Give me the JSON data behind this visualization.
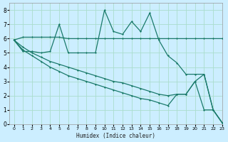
{
  "xlabel": "Humidex (Indice chaleur)",
  "bg_color": "#cceeff",
  "grid_color": "#aaddcc",
  "line_color": "#1a7a6a",
  "xlim": [
    -0.5,
    23
  ],
  "ylim": [
    0,
    8.5
  ],
  "xticks": [
    0,
    1,
    2,
    3,
    4,
    5,
    6,
    7,
    8,
    9,
    10,
    11,
    12,
    13,
    14,
    15,
    16,
    17,
    18,
    19,
    20,
    21,
    22,
    23
  ],
  "yticks": [
    0,
    1,
    2,
    3,
    4,
    5,
    6,
    7,
    8
  ],
  "line1_x": [
    0,
    1,
    2,
    3,
    4,
    5,
    6,
    7,
    8,
    9,
    10,
    11,
    12,
    13,
    14,
    15,
    16,
    17,
    18,
    19,
    20,
    21,
    22,
    23
  ],
  "line1_y": [
    5.9,
    6.1,
    6.1,
    6.1,
    6.1,
    6.1,
    6.0,
    6.0,
    6.0,
    6.0,
    6.0,
    6.0,
    6.0,
    6.0,
    6.0,
    6.0,
    6.0,
    6.0,
    6.0,
    6.0,
    6.0,
    6.0,
    6.0,
    6.0
  ],
  "line2_x": [
    0,
    1,
    2,
    3,
    4,
    5,
    6,
    7,
    8,
    9,
    10,
    11,
    12,
    13,
    14,
    15,
    16,
    17,
    18,
    19,
    20,
    21,
    22,
    23
  ],
  "line2_y": [
    5.9,
    5.1,
    5.1,
    5.0,
    5.1,
    7.0,
    5.0,
    5.0,
    5.0,
    5.0,
    8.0,
    6.5,
    6.3,
    7.2,
    6.5,
    7.8,
    5.9,
    4.8,
    4.3,
    3.5,
    3.5,
    3.5,
    1.0,
    0.1
  ],
  "line3_x": [
    0,
    1,
    2,
    3,
    4,
    5,
    6,
    7,
    8,
    9,
    10,
    11,
    12,
    13,
    14,
    15,
    16,
    17,
    18,
    19,
    20,
    21,
    22,
    23
  ],
  "line3_y": [
    5.9,
    5.4,
    5.0,
    4.7,
    4.4,
    4.2,
    4.0,
    3.8,
    3.6,
    3.4,
    3.2,
    3.0,
    2.9,
    2.7,
    2.5,
    2.3,
    2.1,
    2.0,
    2.1,
    2.1,
    3.0,
    3.5,
    1.0,
    0.1
  ],
  "line4_x": [
    0,
    1,
    2,
    3,
    4,
    5,
    6,
    7,
    8,
    9,
    10,
    11,
    12,
    13,
    14,
    15,
    16,
    17,
    18,
    19,
    20,
    21,
    22,
    23
  ],
  "line4_y": [
    5.9,
    5.2,
    4.8,
    4.4,
    4.0,
    3.7,
    3.4,
    3.2,
    3.0,
    2.8,
    2.6,
    2.4,
    2.2,
    2.0,
    1.8,
    1.7,
    1.5,
    1.3,
    2.1,
    2.1,
    3.0,
    1.0,
    1.0,
    0.1
  ]
}
